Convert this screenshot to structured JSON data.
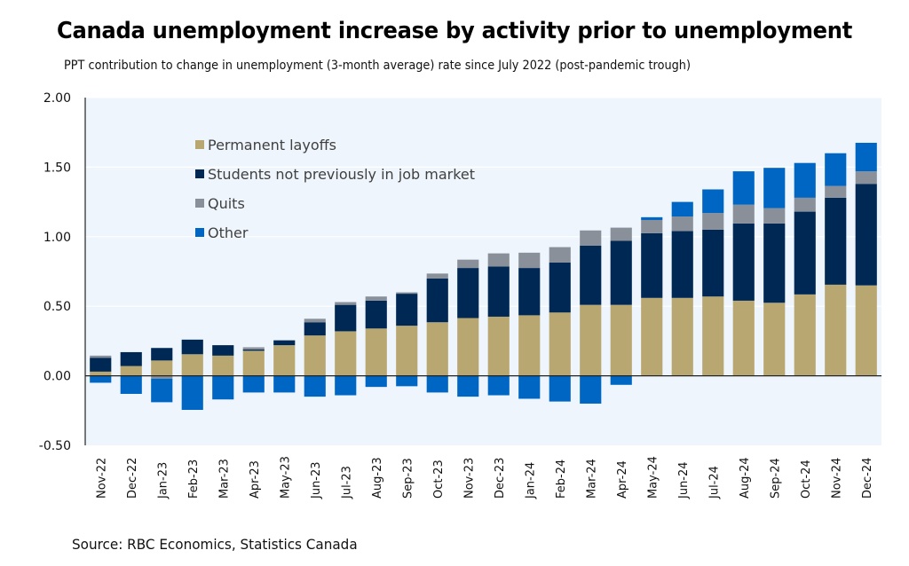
{
  "title": "Canada unemployment increase by activity prior to unemployment",
  "subtitle": "PPT contribution to change in unemployment (3-month average) rate since July 2022 (post-pandemic trough)",
  "source": "Source: RBC Economics, Statistics Canada",
  "chart_data": {
    "type": "bar",
    "stacked": true,
    "title": "Canada unemployment increase by activity prior to unemployment",
    "subtitle": "PPT contribution to change in unemployment (3-month average) rate since July 2022 (post-pandemic trough)",
    "xlabel": "",
    "ylabel": "",
    "ylim": [
      -0.5,
      2.0
    ],
    "yticks": [
      "2.00",
      "1.50",
      "1.00",
      "0.50",
      "0.00",
      "-0.50"
    ],
    "ytick_values": [
      2.0,
      1.5,
      1.0,
      0.5,
      0.0,
      -0.5
    ],
    "grid": true,
    "legend_position": "top-left",
    "categories": [
      "Nov-22",
      "Dec-22",
      "Jan-23",
      "Feb-23",
      "Mar-23",
      "Apr-23",
      "May-23",
      "Jun-23",
      "Jul-23",
      "Aug-23",
      "Sep-23",
      "Oct-23",
      "Nov-23",
      "Dec-23",
      "Jan-24",
      "Feb-24",
      "Mar-24",
      "Apr-24",
      "May-24",
      "Jun-24",
      "Jul-24",
      "Aug-24",
      "Sep-24",
      "Oct-24",
      "Nov-24",
      "Dec-24"
    ],
    "series": [
      {
        "name": "Permanent layoffs",
        "color": "#B8A770",
        "values": [
          0.03,
          0.07,
          0.11,
          0.155,
          0.145,
          0.18,
          0.22,
          0.29,
          0.32,
          0.34,
          0.36,
          0.385,
          0.415,
          0.425,
          0.435,
          0.455,
          0.51,
          0.51,
          0.56,
          0.56,
          0.57,
          0.54,
          0.525,
          0.585,
          0.655,
          0.65
        ]
      },
      {
        "name": "Students not previously in job market",
        "color": "#002855",
        "values": [
          0.1,
          0.1,
          0.09,
          0.105,
          0.075,
          0.01,
          0.035,
          0.095,
          0.19,
          0.2,
          0.23,
          0.315,
          0.36,
          0.36,
          0.34,
          0.36,
          0.425,
          0.46,
          0.465,
          0.48,
          0.48,
          0.555,
          0.57,
          0.595,
          0.625,
          0.73
        ]
      },
      {
        "name": "Quits",
        "color": "#8A9099",
        "values": [
          0.015,
          0.0,
          -0.02,
          0.0,
          0.0,
          0.015,
          0.0,
          0.025,
          0.02,
          0.03,
          0.01,
          0.035,
          0.06,
          0.095,
          0.11,
          0.11,
          0.11,
          0.095,
          0.095,
          0.105,
          0.12,
          0.135,
          0.11,
          0.1,
          0.085,
          0.09
        ]
      },
      {
        "name": "Other",
        "color": "#0066C4",
        "values": [
          -0.05,
          -0.13,
          -0.17,
          -0.245,
          -0.17,
          -0.12,
          -0.12,
          -0.15,
          -0.14,
          -0.08,
          -0.075,
          -0.12,
          -0.15,
          -0.14,
          -0.165,
          -0.185,
          -0.2,
          -0.065,
          0.02,
          0.105,
          0.17,
          0.24,
          0.29,
          0.25,
          0.235,
          0.205
        ]
      }
    ]
  }
}
